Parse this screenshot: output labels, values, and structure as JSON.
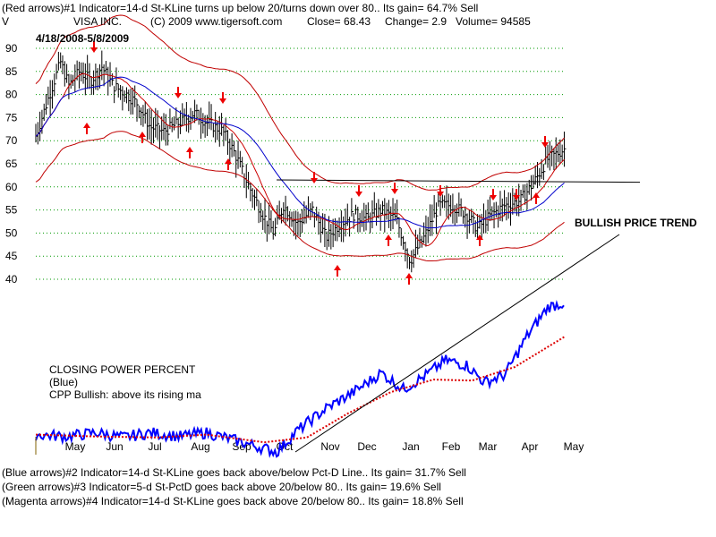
{
  "header": {
    "line1": "(Red arrows)#1 Indicator=14-d St-KLine turns up below 20/turns down over 80.. Its gain= 64.7% Sell",
    "symbol": "V",
    "company": "VISA INC.",
    "copyright": "(C) 2009 www.tigersoft.com",
    "close": "Close=  68.43",
    "change": "Change= 2.9",
    "volume": "Volume= 94585",
    "date_range": "4/18/2008-5/8/2009"
  },
  "annotations": {
    "bullish": "BULLISH PRICE TREND",
    "cpp_title": "CLOSING POWER PERCENT",
    "cpp_blue": "(Blue)",
    "cpp_note": "CPP Bullish: above its rising ma"
  },
  "footer": [
    "(Blue arrows)#2 Indicator=14-d St-KLine goes back above/below Pct-D Line.. Its gain= 31.7% Sell",
    "(Green arrows)#3 Indicator=5-d St-PctD goes back above 20/below 80.. Its gain= 19.6% Sell",
    "(Magenta arrows)#4 Indicator=14-d St-KLine goes back above 20/below 80.. Its gain= 18.8% Sell"
  ],
  "colors": {
    "price_bars": "#000000",
    "bands_outer": "#c00000",
    "ma_fast": "#cc0000",
    "ma_slow": "#0000cc",
    "cpp_line": "#0000ff",
    "cpp_ma": "#dd0000",
    "grid": "#009900",
    "arrows": "#ee0000",
    "trendline": "#000000"
  },
  "chart_data": [
    {
      "type": "line",
      "title": "VISA INC.",
      "y_ticks": [
        90,
        85,
        80,
        75,
        70,
        65,
        60,
        55,
        50,
        45,
        40
      ],
      "ylim": [
        38,
        92
      ],
      "x_ticks": [
        "May",
        "Jun",
        "Jul",
        "Aug",
        "Sep",
        "Oct",
        "Nov",
        "Dec",
        "Jan",
        "Feb",
        "Mar",
        "Apr",
        "May"
      ],
      "grid": true,
      "series": [
        {
          "name": "price",
          "points": [
            [
              "2008-04-18",
              71
            ],
            [
              "2008-04-28",
              80
            ],
            [
              "2008-05-06",
              87
            ],
            [
              "2008-05-12",
              82
            ],
            [
              "2008-05-20",
              85
            ],
            [
              "2008-05-28",
              83
            ],
            [
              "2008-06-05",
              86
            ],
            [
              "2008-06-13",
              82
            ],
            [
              "2008-06-23",
              80
            ],
            [
              "2008-07-01",
              78
            ],
            [
              "2008-07-10",
              73
            ],
            [
              "2008-07-20",
              72
            ],
            [
              "2008-08-01",
              74
            ],
            [
              "2008-08-11",
              76
            ],
            [
              "2008-08-20",
              74
            ],
            [
              "2008-09-01",
              72
            ],
            [
              "2008-09-10",
              67
            ],
            [
              "2008-09-20",
              60
            ],
            [
              "2008-09-30",
              54
            ],
            [
              "2008-10-08",
              50
            ],
            [
              "2008-10-15",
              56
            ],
            [
              "2008-10-25",
              52
            ],
            [
              "2008-11-05",
              55
            ],
            [
              "2008-11-15",
              49
            ],
            [
              "2008-11-25",
              52
            ],
            [
              "2008-12-05",
              54
            ],
            [
              "2008-12-15",
              53
            ],
            [
              "2008-12-25",
              55
            ],
            [
              "2009-01-05",
              53
            ],
            [
              "2009-01-15",
              44
            ],
            [
              "2009-01-25",
              49
            ],
            [
              "2009-02-05",
              56
            ],
            [
              "2009-02-15",
              56
            ],
            [
              "2009-02-25",
              54
            ],
            [
              "2009-03-05",
              51
            ],
            [
              "2009-03-15",
              54
            ],
            [
              "2009-03-25",
              56
            ],
            [
              "2009-04-05",
              57
            ],
            [
              "2009-04-15",
              61
            ],
            [
              "2009-04-25",
              66
            ],
            [
              "2009-05-08",
              68.4
            ]
          ]
        },
        {
          "name": "resistance",
          "points": [
            [
              "2008-10-10",
              61.5
            ],
            [
              "2009-05-08",
              61
            ]
          ]
        }
      ]
    },
    {
      "type": "line",
      "title": "CLOSING POWER PERCENT",
      "series": [
        {
          "name": "CPP",
          "points": [
            [
              "2008-04-18",
              0.18
            ],
            [
              "2008-05-10",
              0.16
            ],
            [
              "2008-06-01",
              0.2
            ],
            [
              "2008-06-20",
              0.15
            ],
            [
              "2008-07-10",
              0.2
            ],
            [
              "2008-08-01",
              0.16
            ],
            [
              "2008-08-20",
              0.2
            ],
            [
              "2008-09-10",
              0.12
            ],
            [
              "2008-09-30",
              0.04
            ],
            [
              "2008-10-10",
              0.0
            ],
            [
              "2008-10-25",
              0.22
            ],
            [
              "2008-11-15",
              0.45
            ],
            [
              "2008-12-05",
              0.62
            ],
            [
              "2008-12-25",
              0.82
            ],
            [
              "2009-01-10",
              0.65
            ],
            [
              "2009-01-25",
              0.78
            ],
            [
              "2009-02-10",
              0.95
            ],
            [
              "2009-02-25",
              0.9
            ],
            [
              "2009-03-10",
              0.72
            ],
            [
              "2009-03-25",
              0.8
            ],
            [
              "2009-04-10",
              1.2
            ],
            [
              "2009-04-25",
              1.5
            ],
            [
              "2009-05-08",
              1.55
            ]
          ]
        },
        {
          "name": "CPP MA",
          "points": [
            [
              "2008-04-18",
              0.18
            ],
            [
              "2008-06-01",
              0.16
            ],
            [
              "2008-07-15",
              0.15
            ],
            [
              "2008-08-20",
              0.18
            ],
            [
              "2008-10-01",
              0.1
            ],
            [
              "2008-11-01",
              0.15
            ],
            [
              "2008-12-01",
              0.4
            ],
            [
              "2009-01-01",
              0.62
            ],
            [
              "2009-02-01",
              0.75
            ],
            [
              "2009-03-01",
              0.74
            ],
            [
              "2009-04-01",
              0.88
            ],
            [
              "2009-05-08",
              1.2
            ]
          ]
        }
      ]
    }
  ]
}
